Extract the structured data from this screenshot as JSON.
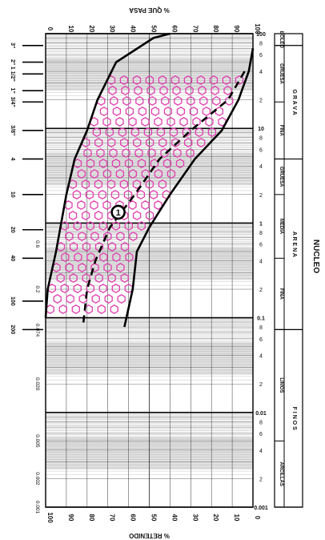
{
  "chart_data": {
    "type": "line",
    "orientation": "rotated-90",
    "top_label": "% QUE PASA",
    "bottom_label": "% RETENIDO",
    "side_title": "NUCLEO",
    "top_ticks": [
      "0",
      "10",
      "20",
      "30",
      "40",
      "50",
      "60",
      "70",
      "80",
      "90",
      "100"
    ],
    "bottom_ticks": [
      "100",
      "90",
      "80",
      "70",
      "60",
      "50",
      "40",
      "30",
      "20",
      "10",
      "0"
    ],
    "size_axis": {
      "scale": "log",
      "range_mm": [
        0.001,
        100
      ],
      "decade_labels": [
        "100",
        "10",
        "1",
        "0.1",
        "0.01",
        "0.001"
      ],
      "minor_ticks": [
        {
          "label": "8",
          "value": 80
        },
        {
          "label": "6",
          "value": 60
        },
        {
          "label": "4",
          "value": 40
        },
        {
          "label": "2",
          "value": 20
        },
        {
          "label": "8",
          "value": 8
        },
        {
          "label": "6",
          "value": 6
        },
        {
          "label": "4",
          "value": 4
        },
        {
          "label": "2",
          "value": 2
        },
        {
          "label": "8",
          "value": 0.8
        },
        {
          "label": "6",
          "value": 0.6
        },
        {
          "label": "4",
          "value": 0.4
        },
        {
          "label": "2",
          "value": 0.2
        },
        {
          "label": "8",
          "value": 0.08
        },
        {
          "label": "6",
          "value": 0.06
        },
        {
          "label": "4",
          "value": 0.04
        },
        {
          "label": "2",
          "value": 0.02
        },
        {
          "label": "8",
          "value": 0.008
        },
        {
          "label": "6",
          "value": 0.006
        },
        {
          "label": "4",
          "value": 0.004
        },
        {
          "label": "2",
          "value": 0.002
        }
      ]
    },
    "sieves": [
      {
        "label": "3\"",
        "size": 75
      },
      {
        "label": "2\"",
        "size": 50
      },
      {
        "label": "1 1/2\"",
        "size": 37.5
      },
      {
        "label": "1\"",
        "size": 25
      },
      {
        "label": "3/4\"",
        "size": 19
      },
      {
        "label": "3/8\"",
        "size": 9.5
      },
      {
        "label": "4",
        "size": 4.75
      },
      {
        "label": "10",
        "size": 2.0
      },
      {
        "label": "20",
        "size": 0.85
      },
      {
        "label": "40",
        "size": 0.425
      },
      {
        "label": "100",
        "size": 0.15
      },
      {
        "label": "200",
        "size": 0.075
      }
    ],
    "sieve_mm_labels": [
      {
        "label": "0.6",
        "size": 0.6
      },
      {
        "label": "0.2",
        "size": 0.2
      },
      {
        "label": "0.074",
        "size": 0.074
      },
      {
        "label": "0.020",
        "size": 0.02
      },
      {
        "label": "0.005",
        "size": 0.005
      },
      {
        "label": "0.002",
        "size": 0.002
      },
      {
        "label": "0.001",
        "size": 0.001
      }
    ],
    "soil_classes": [
      {
        "group": "BOLEO",
        "parts": [
          {
            "name": "BOLEO",
            "range": [
              75,
              100
            ]
          }
        ]
      },
      {
        "group": "G R A V A",
        "parts": [
          {
            "name": "GRUESA",
            "range": [
              19,
              75
            ]
          },
          {
            "name": "FINA",
            "range": [
              4.75,
              19
            ]
          }
        ]
      },
      {
        "group": "A R E N A",
        "parts": [
          {
            "name": "GRUESA",
            "range": [
              2,
              4.75
            ]
          },
          {
            "name": "MEDIA",
            "range": [
              0.425,
              2
            ]
          },
          {
            "name": "FINA",
            "range": [
              0.075,
              0.425
            ]
          }
        ]
      },
      {
        "group": "F I N O S",
        "parts": [
          {
            "name": "LIMOS",
            "range": [
              0.005,
              0.075
            ]
          },
          {
            "name": "ARCILLAS",
            "range": [
              0.001,
              0.005
            ]
          }
        ]
      }
    ],
    "series": [
      {
        "style": "solid",
        "points": [
          [
            60,
            100
          ],
          [
            52,
            90
          ],
          [
            34,
            50
          ],
          [
            25,
            20
          ],
          [
            20,
            9.5
          ],
          [
            14,
            4.75
          ],
          [
            10,
            2
          ],
          [
            5,
            0.5
          ],
          [
            1,
            0.2
          ],
          [
            0,
            0.1
          ]
        ]
      },
      {
        "style": "solid",
        "points": [
          [
            100,
            70
          ],
          [
            98,
            40
          ],
          [
            93,
            20
          ],
          [
            85,
            9.5
          ],
          [
            72,
            4.75
          ],
          [
            60,
            2
          ],
          [
            50,
            0.9
          ],
          [
            44,
            0.5
          ],
          [
            42,
            0.2
          ],
          [
            38,
            0.08
          ]
        ]
      },
      {
        "style": "dashed",
        "points": [
          [
            96,
            40
          ],
          [
            88,
            20
          ],
          [
            70,
            9.5
          ],
          [
            55,
            4.75
          ],
          [
            43,
            2
          ],
          [
            31,
            0.9
          ],
          [
            24,
            0.4
          ],
          [
            20,
            0.2
          ],
          [
            18,
            0.08
          ]
        ]
      }
    ],
    "annotation": {
      "label": "1",
      "pct": 35,
      "size": 1.3
    },
    "colors": {
      "band": "#e040b0",
      "line": "#000000",
      "grid": "#555555",
      "shade": "#c8c8c8"
    }
  }
}
